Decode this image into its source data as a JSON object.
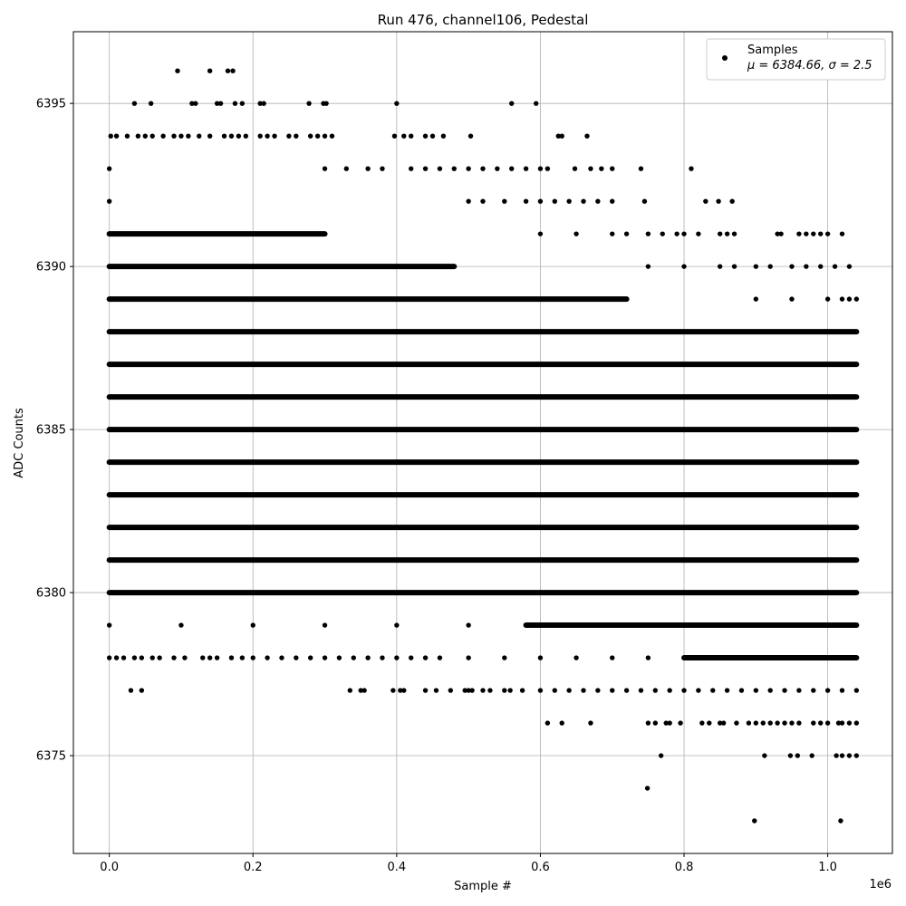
{
  "chart_data": {
    "type": "scatter",
    "title": "Run 476, channel106, Pedestal",
    "xlabel": "Sample #",
    "ylabel": "ADC Counts",
    "x_offset_label": "1e6",
    "xlim": [
      -0.05,
      1.09
    ],
    "ylim": [
      6372,
      6397.2
    ],
    "xticks": [
      0.0,
      0.2,
      0.4,
      0.6,
      0.8,
      1.0
    ],
    "xtick_labels": [
      "0.0",
      "0.2",
      "0.4",
      "0.6",
      "0.8",
      "1.0"
    ],
    "yticks": [
      6375,
      6380,
      6385,
      6390,
      6395
    ],
    "ytick_labels": [
      "6375",
      "6380",
      "6385",
      "6390",
      "6395"
    ],
    "grid": true,
    "legend_position": "top-right",
    "marker_color": "#000000",
    "series": [
      {
        "name": "Samples",
        "stats_label": "μ = 6384.66, σ = 2.5",
        "dense_bands": [
          {
            "y": 6380,
            "x_range": [
              0.0,
              1.04
            ]
          },
          {
            "y": 6381,
            "x_range": [
              0.0,
              1.04
            ]
          },
          {
            "y": 6382,
            "x_range": [
              0.0,
              1.04
            ]
          },
          {
            "y": 6383,
            "x_range": [
              0.0,
              1.04
            ]
          },
          {
            "y": 6384,
            "x_range": [
              0.0,
              1.04
            ]
          },
          {
            "y": 6385,
            "x_range": [
              0.0,
              1.04
            ]
          },
          {
            "y": 6386,
            "x_range": [
              0.0,
              1.04
            ]
          },
          {
            "y": 6387,
            "x_range": [
              0.0,
              1.04
            ]
          },
          {
            "y": 6388,
            "x_range": [
              0.0,
              1.04
            ]
          },
          {
            "y": 6389,
            "x_range": [
              0.0,
              0.72
            ]
          },
          {
            "y": 6390,
            "x_range": [
              0.0,
              0.48
            ]
          },
          {
            "y": 6391,
            "x_range": [
              0.0,
              0.3
            ]
          },
          {
            "y": 6379,
            "x_range": [
              0.58,
              1.04
            ]
          },
          {
            "y": 6378,
            "x_range": [
              0.8,
              1.04
            ]
          }
        ],
        "points": [
          [
            0.095,
            6396
          ],
          [
            0.14,
            6396
          ],
          [
            0.165,
            6396
          ],
          [
            0.172,
            6396
          ],
          [
            0.035,
            6395
          ],
          [
            0.058,
            6395
          ],
          [
            0.115,
            6395
          ],
          [
            0.12,
            6395
          ],
          [
            0.15,
            6395
          ],
          [
            0.155,
            6395
          ],
          [
            0.175,
            6395
          ],
          [
            0.185,
            6395
          ],
          [
            0.21,
            6395
          ],
          [
            0.215,
            6395
          ],
          [
            0.278,
            6395
          ],
          [
            0.298,
            6395
          ],
          [
            0.302,
            6395
          ],
          [
            0.4,
            6395
          ],
          [
            0.56,
            6395
          ],
          [
            0.594,
            6395
          ],
          [
            0.002,
            6394
          ],
          [
            0.01,
            6394
          ],
          [
            0.025,
            6394
          ],
          [
            0.04,
            6394
          ],
          [
            0.05,
            6394
          ],
          [
            0.06,
            6394
          ],
          [
            0.075,
            6394
          ],
          [
            0.09,
            6394
          ],
          [
            0.1,
            6394
          ],
          [
            0.11,
            6394
          ],
          [
            0.125,
            6394
          ],
          [
            0.14,
            6394
          ],
          [
            0.16,
            6394
          ],
          [
            0.17,
            6394
          ],
          [
            0.18,
            6394
          ],
          [
            0.19,
            6394
          ],
          [
            0.21,
            6394
          ],
          [
            0.22,
            6394
          ],
          [
            0.23,
            6394
          ],
          [
            0.25,
            6394
          ],
          [
            0.26,
            6394
          ],
          [
            0.28,
            6394
          ],
          [
            0.29,
            6394
          ],
          [
            0.3,
            6394
          ],
          [
            0.31,
            6394
          ],
          [
            0.397,
            6394
          ],
          [
            0.41,
            6394
          ],
          [
            0.42,
            6394
          ],
          [
            0.44,
            6394
          ],
          [
            0.45,
            6394
          ],
          [
            0.465,
            6394
          ],
          [
            0.503,
            6394
          ],
          [
            0.625,
            6394
          ],
          [
            0.63,
            6394
          ],
          [
            0.665,
            6394
          ],
          [
            0.0,
            6393
          ],
          [
            0.3,
            6393
          ],
          [
            0.33,
            6393
          ],
          [
            0.36,
            6393
          ],
          [
            0.38,
            6393
          ],
          [
            0.42,
            6393
          ],
          [
            0.44,
            6393
          ],
          [
            0.46,
            6393
          ],
          [
            0.48,
            6393
          ],
          [
            0.5,
            6393
          ],
          [
            0.52,
            6393
          ],
          [
            0.54,
            6393
          ],
          [
            0.56,
            6393
          ],
          [
            0.58,
            6393
          ],
          [
            0.6,
            6393
          ],
          [
            0.61,
            6393
          ],
          [
            0.648,
            6393
          ],
          [
            0.67,
            6393
          ],
          [
            0.685,
            6393
          ],
          [
            0.7,
            6393
          ],
          [
            0.74,
            6393
          ],
          [
            0.81,
            6393
          ],
          [
            0.0,
            6392
          ],
          [
            0.5,
            6392
          ],
          [
            0.52,
            6392
          ],
          [
            0.55,
            6392
          ],
          [
            0.58,
            6392
          ],
          [
            0.6,
            6392
          ],
          [
            0.62,
            6392
          ],
          [
            0.64,
            6392
          ],
          [
            0.66,
            6392
          ],
          [
            0.68,
            6392
          ],
          [
            0.7,
            6392
          ],
          [
            0.745,
            6392
          ],
          [
            0.83,
            6392
          ],
          [
            0.848,
            6392
          ],
          [
            0.867,
            6392
          ],
          [
            0.6,
            6391
          ],
          [
            0.65,
            6391
          ],
          [
            0.7,
            6391
          ],
          [
            0.72,
            6391
          ],
          [
            0.75,
            6391
          ],
          [
            0.77,
            6391
          ],
          [
            0.79,
            6391
          ],
          [
            0.8,
            6391
          ],
          [
            0.82,
            6391
          ],
          [
            0.85,
            6391
          ],
          [
            0.86,
            6391
          ],
          [
            0.87,
            6391
          ],
          [
            0.93,
            6391
          ],
          [
            0.935,
            6391
          ],
          [
            0.96,
            6391
          ],
          [
            0.97,
            6391
          ],
          [
            0.98,
            6391
          ],
          [
            0.99,
            6391
          ],
          [
            1.0,
            6391
          ],
          [
            1.02,
            6391
          ],
          [
            0.75,
            6390
          ],
          [
            0.8,
            6390
          ],
          [
            0.85,
            6390
          ],
          [
            0.87,
            6390
          ],
          [
            0.9,
            6390
          ],
          [
            0.92,
            6390
          ],
          [
            0.95,
            6390
          ],
          [
            0.97,
            6390
          ],
          [
            0.99,
            6390
          ],
          [
            1.01,
            6390
          ],
          [
            1.03,
            6390
          ],
          [
            0.9,
            6389
          ],
          [
            0.95,
            6389
          ],
          [
            1.0,
            6389
          ],
          [
            1.02,
            6389
          ],
          [
            1.03,
            6389
          ],
          [
            1.04,
            6389
          ],
          [
            0.0,
            6379
          ],
          [
            0.1,
            6379
          ],
          [
            0.2,
            6379
          ],
          [
            0.3,
            6379
          ],
          [
            0.4,
            6379
          ],
          [
            0.5,
            6379
          ],
          [
            0.0,
            6378
          ],
          [
            0.01,
            6378
          ],
          [
            0.02,
            6378
          ],
          [
            0.035,
            6378
          ],
          [
            0.045,
            6378
          ],
          [
            0.06,
            6378
          ],
          [
            0.07,
            6378
          ],
          [
            0.09,
            6378
          ],
          [
            0.105,
            6378
          ],
          [
            0.13,
            6378
          ],
          [
            0.14,
            6378
          ],
          [
            0.15,
            6378
          ],
          [
            0.17,
            6378
          ],
          [
            0.185,
            6378
          ],
          [
            0.2,
            6378
          ],
          [
            0.22,
            6378
          ],
          [
            0.24,
            6378
          ],
          [
            0.26,
            6378
          ],
          [
            0.28,
            6378
          ],
          [
            0.3,
            6378
          ],
          [
            0.32,
            6378
          ],
          [
            0.34,
            6378
          ],
          [
            0.36,
            6378
          ],
          [
            0.38,
            6378
          ],
          [
            0.4,
            6378
          ],
          [
            0.42,
            6378
          ],
          [
            0.44,
            6378
          ],
          [
            0.46,
            6378
          ],
          [
            0.5,
            6378
          ],
          [
            0.55,
            6378
          ],
          [
            0.6,
            6378
          ],
          [
            0.65,
            6378
          ],
          [
            0.7,
            6378
          ],
          [
            0.75,
            6378
          ],
          [
            0.03,
            6377
          ],
          [
            0.045,
            6377
          ],
          [
            0.335,
            6377
          ],
          [
            0.35,
            6377
          ],
          [
            0.355,
            6377
          ],
          [
            0.395,
            6377
          ],
          [
            0.405,
            6377
          ],
          [
            0.41,
            6377
          ],
          [
            0.44,
            6377
          ],
          [
            0.455,
            6377
          ],
          [
            0.475,
            6377
          ],
          [
            0.495,
            6377
          ],
          [
            0.5,
            6377
          ],
          [
            0.505,
            6377
          ],
          [
            0.52,
            6377
          ],
          [
            0.53,
            6377
          ],
          [
            0.55,
            6377
          ],
          [
            0.558,
            6377
          ],
          [
            0.575,
            6377
          ],
          [
            0.6,
            6377
          ],
          [
            0.62,
            6377
          ],
          [
            0.64,
            6377
          ],
          [
            0.66,
            6377
          ],
          [
            0.68,
            6377
          ],
          [
            0.7,
            6377
          ],
          [
            0.72,
            6377
          ],
          [
            0.74,
            6377
          ],
          [
            0.76,
            6377
          ],
          [
            0.78,
            6377
          ],
          [
            0.8,
            6377
          ],
          [
            0.82,
            6377
          ],
          [
            0.84,
            6377
          ],
          [
            0.86,
            6377
          ],
          [
            0.88,
            6377
          ],
          [
            0.9,
            6377
          ],
          [
            0.92,
            6377
          ],
          [
            0.94,
            6377
          ],
          [
            0.96,
            6377
          ],
          [
            0.98,
            6377
          ],
          [
            1.0,
            6377
          ],
          [
            1.02,
            6377
          ],
          [
            1.04,
            6377
          ],
          [
            0.61,
            6376
          ],
          [
            0.63,
            6376
          ],
          [
            0.67,
            6376
          ],
          [
            0.75,
            6376
          ],
          [
            0.76,
            6376
          ],
          [
            0.775,
            6376
          ],
          [
            0.78,
            6376
          ],
          [
            0.795,
            6376
          ],
          [
            0.825,
            6376
          ],
          [
            0.835,
            6376
          ],
          [
            0.85,
            6376
          ],
          [
            0.855,
            6376
          ],
          [
            0.873,
            6376
          ],
          [
            0.89,
            6376
          ],
          [
            0.9,
            6376
          ],
          [
            0.91,
            6376
          ],
          [
            0.92,
            6376
          ],
          [
            0.93,
            6376
          ],
          [
            0.94,
            6376
          ],
          [
            0.95,
            6376
          ],
          [
            0.96,
            6376
          ],
          [
            0.98,
            6376
          ],
          [
            0.99,
            6376
          ],
          [
            1.0,
            6376
          ],
          [
            1.015,
            6376
          ],
          [
            1.02,
            6376
          ],
          [
            1.03,
            6376
          ],
          [
            1.04,
            6376
          ],
          [
            0.768,
            6375
          ],
          [
            0.912,
            6375
          ],
          [
            0.948,
            6375
          ],
          [
            0.958,
            6375
          ],
          [
            0.978,
            6375
          ],
          [
            1.012,
            6375
          ],
          [
            1.02,
            6375
          ],
          [
            1.03,
            6375
          ],
          [
            1.04,
            6375
          ],
          [
            0.749,
            6374
          ],
          [
            0.898,
            6373
          ],
          [
            1.018,
            6373
          ]
        ]
      }
    ]
  }
}
